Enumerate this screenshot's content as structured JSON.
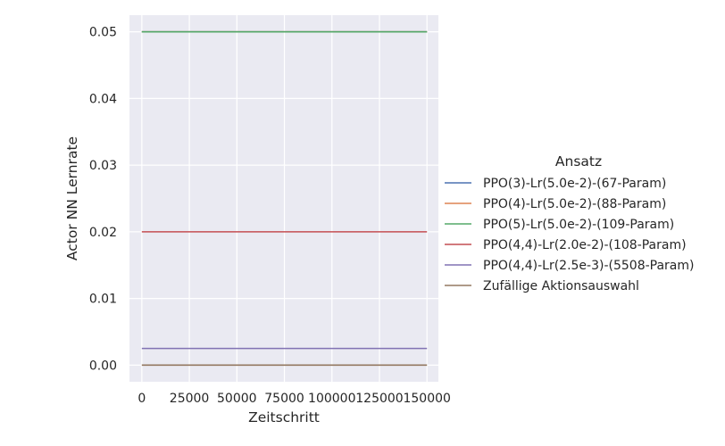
{
  "chart_data": {
    "type": "line",
    "xlabel": "Zeitschritt",
    "ylabel": "Actor NN Lernrate",
    "xlim": [
      -6500,
      156000
    ],
    "ylim": [
      -0.0025,
      0.0525
    ],
    "xticks": [
      0,
      25000,
      50000,
      75000,
      100000,
      125000,
      150000
    ],
    "xtick_labels": [
      "0",
      "25000",
      "50000",
      "75000",
      "100000",
      "125000",
      "150000"
    ],
    "yticks": [
      0.0,
      0.01,
      0.02,
      0.03,
      0.04,
      0.05
    ],
    "ytick_labels": [
      "0.00",
      "0.01",
      "0.02",
      "0.03",
      "0.04",
      "0.05"
    ],
    "grid": true,
    "legend_title": "Ansatz",
    "legend_placement": "right",
    "series": [
      {
        "name": "PPO(3)-Lr(5.0e-2)-(67-Param)",
        "color": "#4c72b0",
        "x": [
          0,
          150000
        ],
        "values": [
          0.05,
          0.05
        ]
      },
      {
        "name": "PPO(4)-Lr(5.0e-2)-(88-Param)",
        "color": "#dd8452",
        "x": [
          0,
          150000
        ],
        "values": [
          0.05,
          0.05
        ]
      },
      {
        "name": "PPO(5)-Lr(5.0e-2)-(109-Param)",
        "color": "#55a868",
        "x": [
          0,
          150000
        ],
        "values": [
          0.05,
          0.05
        ]
      },
      {
        "name": "PPO(4,4)-Lr(2.0e-2)-(108-Param)",
        "color": "#c44e52",
        "x": [
          0,
          150000
        ],
        "values": [
          0.02,
          0.02
        ]
      },
      {
        "name": "PPO(4,4)-Lr(2.5e-3)-(5508-Param)",
        "color": "#8172b3",
        "x": [
          0,
          150000
        ],
        "values": [
          0.0025,
          0.0025
        ]
      },
      {
        "name": "Zufällige Aktionsauswahl",
        "color": "#937860",
        "x": [
          0,
          150000
        ],
        "values": [
          0.0,
          0.0
        ]
      }
    ]
  }
}
